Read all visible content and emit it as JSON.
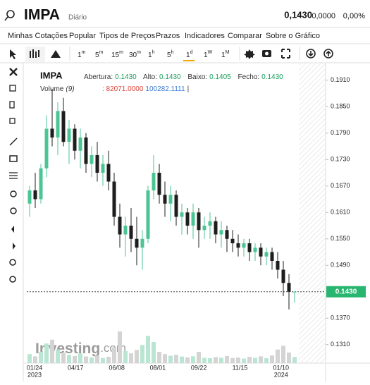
{
  "header": {
    "symbol": "IMPA",
    "period": "Diário",
    "price": "0,1430",
    "change": "0,0000",
    "change_pct": "0,00%"
  },
  "menu": [
    "Minhas Cotações",
    "Popular",
    "Tipos de Preços",
    "Prazos",
    "Indicadores",
    "Comparar",
    "Sobre o Gráfico"
  ],
  "timeframes": [
    {
      "n": "1",
      "u": "m"
    },
    {
      "n": "5",
      "u": "m"
    },
    {
      "n": "15",
      "u": "m"
    },
    {
      "n": "30",
      "u": "m"
    },
    {
      "n": "1",
      "u": "h"
    },
    {
      "n": "5",
      "u": "h"
    },
    {
      "n": "1",
      "u": "d"
    },
    {
      "n": "1",
      "u": "W"
    },
    {
      "n": "1",
      "u": "M"
    }
  ],
  "legend": {
    "symbol": "IMPA",
    "open_label": "Abertura:",
    "open": "0.1430",
    "high_label": "Alto:",
    "high": "0.1430",
    "low_label": "Baixo:",
    "low": "0.1405",
    "close_label": "Fecho:",
    "close": "0.1430",
    "volume_label": "Volume",
    "volume_period": "(9)",
    "volume_value": ": 82071.0000",
    "volume_avg": "100282.1111",
    "sep": "|"
  },
  "watermark": {
    "brand": "Investing",
    "suffix": ".com"
  },
  "chart_data": {
    "type": "candlestick",
    "up_color": "#4cc594",
    "down_color": "#1e1e1e",
    "volume_up_color": "#b9e6d3",
    "volume_down_color": "#d4d4d4",
    "ylim": [
      0.1268,
      0.1948
    ],
    "yticks": [
      {
        "value": 0.191,
        "label": "0.1910"
      },
      {
        "value": 0.185,
        "label": "0.1850"
      },
      {
        "value": 0.179,
        "label": "0.1790"
      },
      {
        "value": 0.173,
        "label": "0.1730"
      },
      {
        "value": 0.167,
        "label": "0.1670"
      },
      {
        "value": 0.161,
        "label": "0.1610"
      },
      {
        "value": 0.155,
        "label": "0.1550"
      },
      {
        "value": 0.149,
        "label": "0.1490"
      },
      {
        "value": 0.137,
        "label": "0.1370"
      },
      {
        "value": 0.131,
        "label": "0.1310"
      }
    ],
    "last_price": {
      "value": 0.143,
      "label": "0.1430"
    },
    "xticks": [
      "01/24",
      "04/17",
      "06/08",
      "08/01",
      "09/22",
      "11/15",
      "01/10"
    ],
    "years": [
      "2023",
      "2024"
    ],
    "open": [
      0.163,
      0.166,
      0.164,
      0.171,
      0.18,
      0.178,
      0.184,
      0.177,
      0.18,
      0.175,
      0.178,
      0.172,
      0.174,
      0.17,
      0.172,
      0.168,
      0.16,
      0.156,
      0.158,
      0.155,
      0.153,
      0.155,
      0.166,
      0.17,
      0.165,
      0.163,
      0.165,
      0.16,
      0.161,
      0.158,
      0.161,
      0.157,
      0.158,
      0.159,
      0.156,
      0.157,
      0.155,
      0.154,
      0.153,
      0.154,
      0.152,
      0.153,
      0.151,
      0.152,
      0.15,
      0.148,
      0.145,
      0.143
    ],
    "high": [
      0.167,
      0.17,
      0.172,
      0.183,
      0.189,
      0.186,
      0.187,
      0.182,
      0.181,
      0.18,
      0.179,
      0.176,
      0.177,
      0.174,
      0.175,
      0.17,
      0.163,
      0.16,
      0.162,
      0.16,
      0.157,
      0.167,
      0.174,
      0.172,
      0.168,
      0.167,
      0.166,
      0.163,
      0.162,
      0.163,
      0.162,
      0.16,
      0.161,
      0.16,
      0.159,
      0.158,
      0.157,
      0.156,
      0.155,
      0.155,
      0.154,
      0.154,
      0.153,
      0.153,
      0.152,
      0.15,
      0.147,
      0.143
    ],
    "low": [
      0.16,
      0.162,
      0.163,
      0.169,
      0.176,
      0.174,
      0.176,
      0.172,
      0.173,
      0.171,
      0.17,
      0.169,
      0.168,
      0.167,
      0.166,
      0.158,
      0.153,
      0.151,
      0.152,
      0.149,
      0.148,
      0.154,
      0.164,
      0.163,
      0.16,
      0.159,
      0.158,
      0.156,
      0.156,
      0.155,
      0.153,
      0.155,
      0.155,
      0.154,
      0.153,
      0.152,
      0.152,
      0.151,
      0.151,
      0.15,
      0.15,
      0.149,
      0.149,
      0.148,
      0.146,
      0.142,
      0.139,
      0.1405
    ],
    "close": [
      0.166,
      0.164,
      0.171,
      0.18,
      0.178,
      0.184,
      0.177,
      0.18,
      0.175,
      0.178,
      0.172,
      0.174,
      0.17,
      0.172,
      0.168,
      0.16,
      0.156,
      0.158,
      0.155,
      0.153,
      0.155,
      0.166,
      0.17,
      0.165,
      0.163,
      0.165,
      0.16,
      0.161,
      0.158,
      0.161,
      0.157,
      0.158,
      0.159,
      0.156,
      0.157,
      0.155,
      0.154,
      0.153,
      0.154,
      0.152,
      0.153,
      0.151,
      0.152,
      0.15,
      0.148,
      0.145,
      0.143,
      0.143
    ],
    "volume": [
      120000,
      90000,
      150000,
      260000,
      310000,
      180000,
      140000,
      110000,
      95000,
      130000,
      88000,
      76000,
      102000,
      69000,
      84000,
      210000,
      420000,
      160000,
      130000,
      175000,
      240000,
      360000,
      280000,
      150000,
      120000,
      98000,
      110000,
      87000,
      76000,
      91000,
      150000,
      70000,
      66000,
      80000,
      72000,
      95000,
      68000,
      74000,
      60000,
      83000,
      71000,
      90000,
      65000,
      102000,
      180000,
      230000,
      140000,
      82071
    ]
  }
}
